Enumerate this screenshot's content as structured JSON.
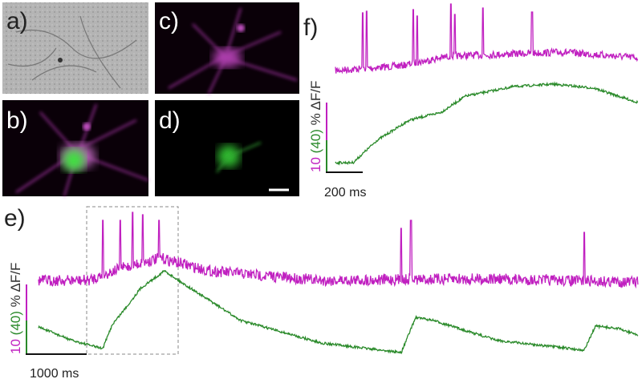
{
  "panels": {
    "a": "a)",
    "b": "b)",
    "c": "c)",
    "d": "d)",
    "e": "e)",
    "f": "f)"
  },
  "trace_f": {
    "scale_time": "200 ms",
    "scale_magenta": "10",
    "scale_green": "(40)",
    "unit": "% ΔF/F"
  },
  "trace_e": {
    "scale_time": "1000 ms",
    "scale_magenta": "10",
    "scale_green": "(40)",
    "unit": "% ΔF/F"
  }
}
